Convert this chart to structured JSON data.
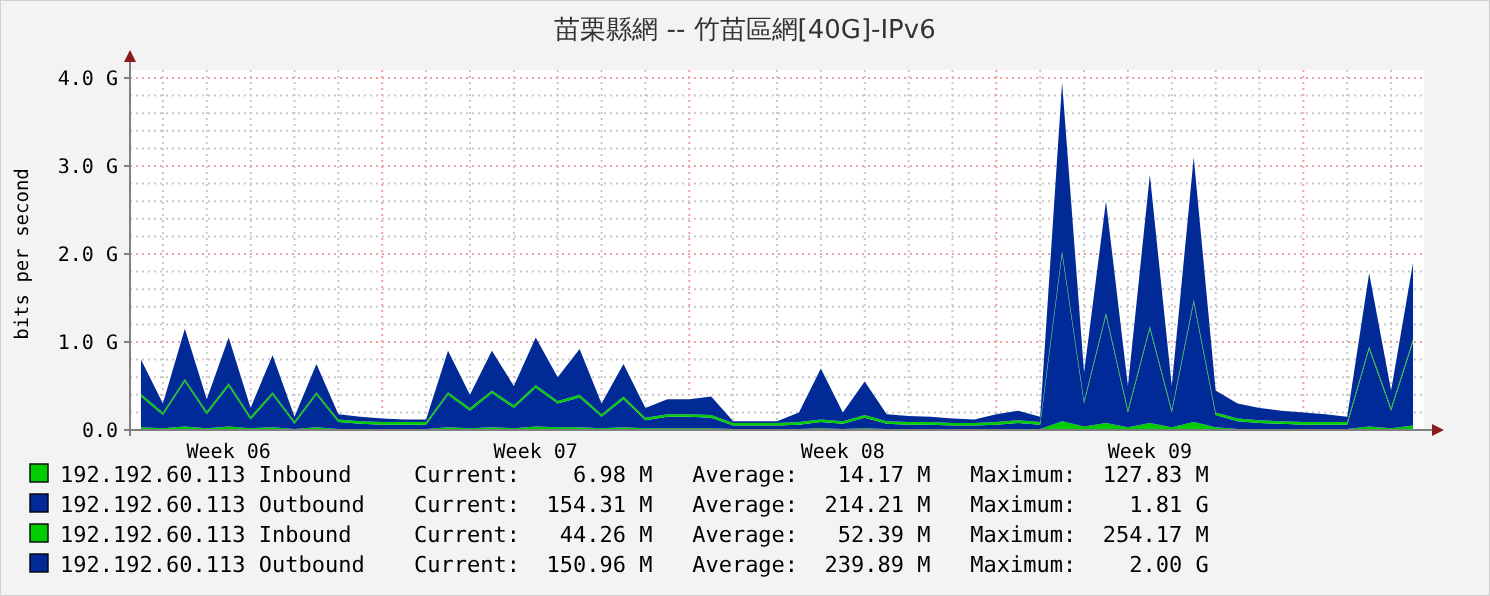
{
  "chart_data": {
    "type": "area",
    "title": "苗栗縣網 -- 竹苗區網[40G]-IPv6",
    "ylabel": "bits per second",
    "stacked": true,
    "grid": true,
    "legend": "bottom",
    "ylim": [
      0,
      4
    ],
    "yticks": [
      {
        "value": 0,
        "label": "0.0"
      },
      {
        "value": 1,
        "label": "1.0 G"
      },
      {
        "value": 2,
        "label": "2.0 G"
      },
      {
        "value": 3,
        "label": "3.0 G"
      },
      {
        "value": 4,
        "label": "4.0 G"
      }
    ],
    "categories": [
      null,
      null,
      null,
      null,
      "Week 06",
      null,
      null,
      null,
      null,
      null,
      null,
      null,
      null,
      null,
      null,
      null,
      null,
      null,
      "Week 07",
      null,
      null,
      null,
      null,
      null,
      null,
      null,
      null,
      null,
      null,
      null,
      null,
      null,
      "Week 08",
      null,
      null,
      null,
      null,
      null,
      null,
      null,
      null,
      null,
      null,
      null,
      null,
      null,
      "Week 09",
      null,
      null,
      null,
      null,
      null,
      null,
      null,
      null,
      null,
      null,
      null,
      null
    ],
    "series": [
      {
        "name": "192.192.60.113 Inbound",
        "color": "#00cc00",
        "values": [
          0.03,
          0.02,
          0.04,
          0.02,
          0.04,
          0.02,
          0.03,
          0.01,
          0.03,
          0.01,
          0.01,
          0.01,
          0.01,
          0.01,
          0.03,
          0.02,
          0.03,
          0.02,
          0.04,
          0.03,
          0.03,
          0.02,
          0.03,
          0.02,
          0.02,
          0.02,
          0.02,
          0.01,
          0.01,
          0.01,
          0.01,
          0.02,
          0.01,
          0.02,
          0.01,
          0.01,
          0.01,
          0.01,
          0.01,
          0.01,
          0.01,
          0.01,
          0.1,
          0.04,
          0.08,
          0.03,
          0.08,
          0.03,
          0.09,
          0.03,
          0.01,
          0.01,
          0.01,
          0.01,
          0.01,
          0.01,
          0.04,
          0.02,
          0.05
        ]
      },
      {
        "name": "192.192.60.113 Outbound",
        "color": "#002a97",
        "values": [
          0.35,
          0.15,
          0.51,
          0.16,
          0.46,
          0.1,
          0.37,
          0.06,
          0.37,
          0.08,
          0.06,
          0.05,
          0.05,
          0.05,
          0.37,
          0.2,
          0.39,
          0.23,
          0.44,
          0.27,
          0.34,
          0.13,
          0.32,
          0.09,
          0.13,
          0.13,
          0.12,
          0.04,
          0.04,
          0.04,
          0.05,
          0.07,
          0.06,
          0.12,
          0.06,
          0.05,
          0.05,
          0.04,
          0.04,
          0.05,
          0.07,
          0.05,
          1.9,
          0.26,
          1.22,
          0.17,
          1.07,
          0.17,
          1.36,
          0.14,
          0.09,
          0.07,
          0.06,
          0.05,
          0.05,
          0.05,
          0.88,
          0.2,
          0.95
        ]
      },
      {
        "name": "192.192.60.113 Inbound",
        "color": "#01cc00",
        "values": [
          0.03,
          0.03,
          0.03,
          0.03,
          0.03,
          0.03,
          0.03,
          0.03,
          0.03,
          0.03,
          0.03,
          0.03,
          0.03,
          0.03,
          0.03,
          0.03,
          0.03,
          0.03,
          0.03,
          0.03,
          0.03,
          0.03,
          0.03,
          0.03,
          0.03,
          0.03,
          0.03,
          0.03,
          0.03,
          0.03,
          0.03,
          0.03,
          0.03,
          0.03,
          0.03,
          0.03,
          0.03,
          0.03,
          0.03,
          0.03,
          0.03,
          0.03,
          0.03,
          0.03,
          0.03,
          0.03,
          0.03,
          0.03,
          0.03,
          0.03,
          0.03,
          0.03,
          0.03,
          0.03,
          0.03,
          0.03,
          0.03,
          0.03,
          0.03
        ]
      },
      {
        "name": "192.192.60.113 Outbound",
        "color": "#012a97",
        "values": [
          0.39,
          0.1,
          0.57,
          0.14,
          0.52,
          0.1,
          0.42,
          0.05,
          0.32,
          0.06,
          0.05,
          0.04,
          0.03,
          0.03,
          0.47,
          0.15,
          0.45,
          0.22,
          0.54,
          0.27,
          0.52,
          0.12,
          0.37,
          0.11,
          0.17,
          0.17,
          0.21,
          0.02,
          0.02,
          0.02,
          0.11,
          0.58,
          0.1,
          0.38,
          0.08,
          0.07,
          0.06,
          0.05,
          0.04,
          0.09,
          0.11,
          0.06,
          1.92,
          0.32,
          1.27,
          0.27,
          1.72,
          0.27,
          1.62,
          0.25,
          0.17,
          0.14,
          0.12,
          0.11,
          0.09,
          0.06,
          0.83,
          0.2,
          0.87
        ]
      }
    ],
    "annotations": [
      "Current:    6.98 M   Average:   14.17 M   Maximum:  127.83 M",
      "Current:  154.31 M   Average:  214.21 M   Maximum:    1.81 G",
      "Current:   44.26 M   Average:   52.39 M   Maximum:  254.17 M",
      "Current:  150.96 M   Average:  239.89 M   Maximum:    2.00 G"
    ]
  }
}
